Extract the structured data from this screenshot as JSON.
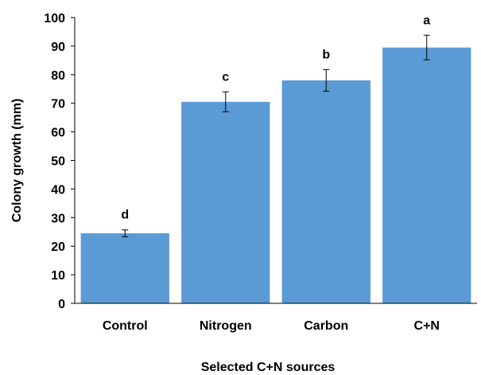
{
  "chart_data": {
    "type": "bar",
    "categories": [
      "Control",
      "Nitrogen",
      "Carbon",
      "C+N"
    ],
    "values": [
      24.5,
      70.5,
      78,
      89.5
    ],
    "errors": [
      1.2,
      3.5,
      3.8,
      4.3
    ],
    "significance_labels": [
      "d",
      "c",
      "b",
      "a"
    ],
    "xlabel": "Selected C+N sources",
    "ylabel": "Colony growth (mm)",
    "ylim": [
      0,
      100
    ],
    "yticks": [
      0,
      10,
      20,
      30,
      40,
      50,
      60,
      70,
      80,
      90,
      100
    ],
    "bar_color": "#5b9bd5",
    "grid": false
  }
}
